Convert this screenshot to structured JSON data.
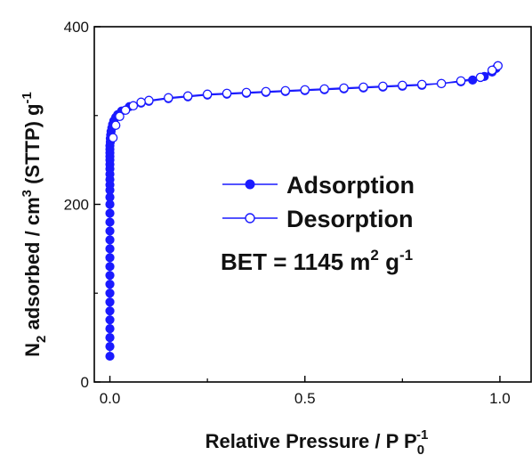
{
  "chart_data": {
    "type": "scatter",
    "xlabel": {
      "main": "Relative Pressure / P P",
      "sub": "0",
      "sup": "-1"
    },
    "ylabel": {
      "n": "N",
      "sub": "2",
      "mid": " adsorbed / cm",
      "sup": "3",
      "tail": " (STTP) g",
      "sup2": "-1"
    },
    "xlim": [
      -0.04,
      1.08
    ],
    "ylim": [
      0,
      400
    ],
    "xticks": [
      0.0,
      0.5,
      1.0
    ],
    "xtick_labels": [
      "0.0",
      "0.5",
      "1.0"
    ],
    "yticks": [
      0,
      200,
      400
    ],
    "ytick_labels": [
      "0",
      "200",
      "400"
    ],
    "grid": false,
    "legend_position": "center-right",
    "annotation": {
      "main": "BET = 1145 m",
      "sup": "2",
      "mid": " g",
      "sup2": "-1"
    },
    "colors": {
      "series": "#1a1aff",
      "axis": "#000000"
    },
    "series": [
      {
        "name": "Adsorption",
        "marker": "filled-circle",
        "x": [
          0.0,
          0.0,
          0.0,
          0.0,
          0.0,
          0.0,
          0.0,
          0.0,
          0.0,
          0.0,
          0.0,
          0.0,
          0.0,
          0.0,
          0.0,
          0.0,
          0.0,
          0.0,
          0.0,
          0.0,
          0.0,
          0.0,
          0.0,
          0.0,
          0.0,
          0.0,
          0.0,
          0.0,
          0.0,
          0.0,
          0.001,
          0.001,
          0.002,
          0.003,
          0.005,
          0.007,
          0.01,
          0.015,
          0.02,
          0.03,
          0.05,
          0.08,
          0.1,
          0.15,
          0.2,
          0.25,
          0.3,
          0.35,
          0.4,
          0.45,
          0.5,
          0.55,
          0.6,
          0.65,
          0.7,
          0.75,
          0.8,
          0.85,
          0.9,
          0.93,
          0.96,
          0.98,
          0.99,
          0.995
        ],
        "y": [
          29,
          40,
          50,
          60,
          70,
          80,
          90,
          100,
          110,
          120,
          130,
          140,
          150,
          160,
          170,
          180,
          190,
          200,
          208,
          216,
          222,
          228,
          234,
          240,
          245,
          250,
          254,
          258,
          262,
          266,
          270,
          274,
          278,
          282,
          286,
          290,
          294,
          298,
          301,
          305,
          310,
          314,
          316,
          319,
          321,
          323,
          324,
          325,
          326,
          327,
          328,
          329,
          330,
          331,
          332,
          333,
          334,
          336,
          338,
          340,
          344,
          349,
          353,
          356
        ]
      },
      {
        "name": "Desorption",
        "marker": "open-circle",
        "x": [
          0.995,
          0.98,
          0.95,
          0.9,
          0.85,
          0.8,
          0.75,
          0.7,
          0.65,
          0.6,
          0.55,
          0.5,
          0.45,
          0.4,
          0.35,
          0.3,
          0.25,
          0.2,
          0.15,
          0.1,
          0.08,
          0.06,
          0.04,
          0.025,
          0.015,
          0.008
        ],
        "y": [
          356,
          351,
          343,
          339,
          336,
          335,
          334,
          333,
          332,
          331,
          330,
          329,
          328,
          327,
          326,
          325,
          324,
          322,
          320,
          317,
          315,
          311,
          306,
          299,
          289,
          275
        ]
      }
    ]
  }
}
